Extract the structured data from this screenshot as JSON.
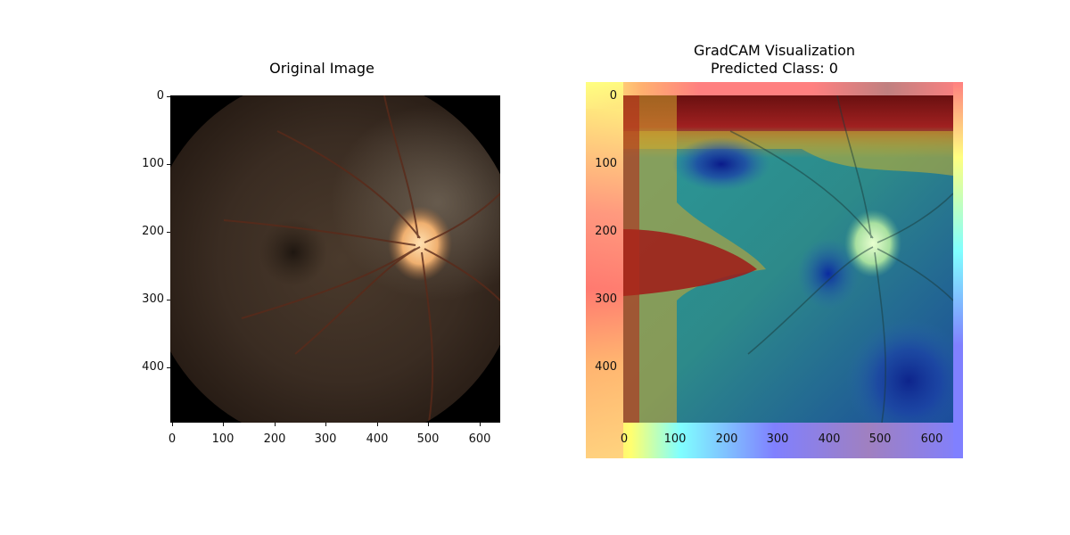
{
  "figure": {
    "left_panel": {
      "title": "Original Image",
      "y_ticks": [
        "0",
        "100",
        "200",
        "300",
        "400"
      ],
      "x_ticks": [
        "0",
        "100",
        "200",
        "300",
        "400",
        "500",
        "600"
      ]
    },
    "right_panel": {
      "title": "GradCAM Visualization\nPredicted Class: 0",
      "y_ticks": [
        "0",
        "100",
        "200",
        "300",
        "400"
      ],
      "x_ticks": [
        "0",
        "100",
        "200",
        "300",
        "400",
        "500",
        "600"
      ]
    }
  },
  "colors": {
    "fundus_background": "#2a2018",
    "optic_disc": "#f4c48a",
    "colormap": "jet"
  }
}
